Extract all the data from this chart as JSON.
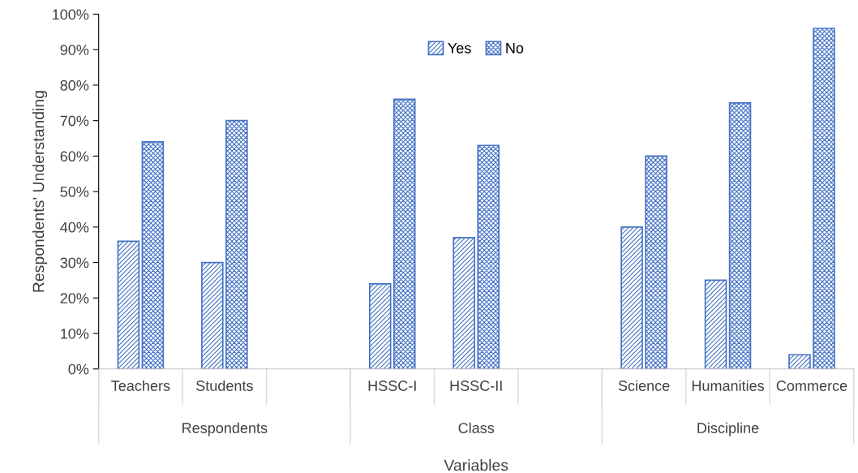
{
  "chart_data": {
    "type": "bar",
    "xlabel": "Variables",
    "ylabel": "Respondents' Understanding",
    "categories": [
      "Teachers",
      "Students",
      null,
      "HSSC-I",
      "HSSC-II",
      null,
      "Science",
      "Humanities",
      "Commerce"
    ],
    "series": [
      {
        "name": "Yes",
        "color": "#4472c4",
        "values": [
          36,
          30,
          null,
          24,
          37,
          null,
          40,
          25,
          4
        ]
      },
      {
        "name": "No",
        "color": "#4472c4",
        "values": [
          64,
          70,
          null,
          76,
          63,
          null,
          60,
          75,
          96
        ]
      }
    ],
    "annotations": [
      "Respondents",
      "Class",
      "Discipline"
    ],
    "ylim": [
      0,
      100
    ],
    "yticks": [
      {
        "value": 0,
        "label": "0%"
      },
      {
        "value": 10,
        "label": "10%"
      },
      {
        "value": 20,
        "label": "20%"
      },
      {
        "value": 30,
        "label": "30%"
      },
      {
        "value": 40,
        "label": "40%"
      },
      {
        "value": 50,
        "label": "50%"
      },
      {
        "value": 60,
        "label": "60%"
      },
      {
        "value": 70,
        "label": "70%"
      },
      {
        "value": 80,
        "label": "80%"
      },
      {
        "value": 90,
        "label": "90%"
      },
      {
        "value": 100,
        "label": "100%"
      }
    ],
    "legend": "top",
    "grid": false
  }
}
